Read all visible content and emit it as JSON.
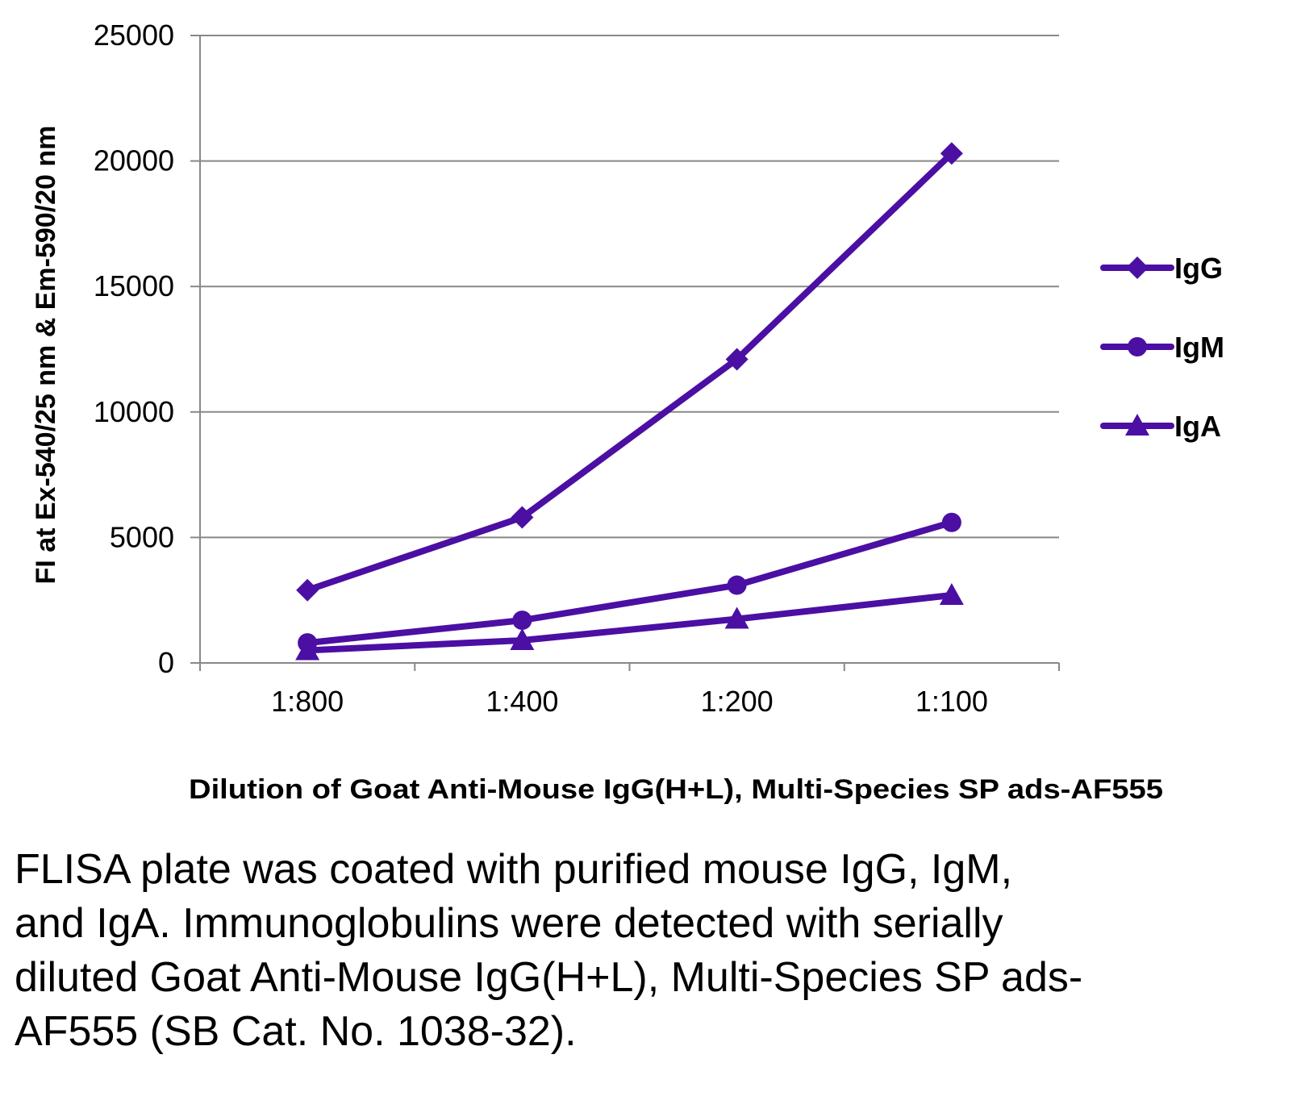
{
  "chart_data": {
    "type": "line",
    "categories": [
      "1:800",
      "1:400",
      "1:200",
      "1:100"
    ],
    "series": [
      {
        "name": "IgG",
        "marker": "diamond",
        "values": [
          2900,
          5800,
          12100,
          20300
        ]
      },
      {
        "name": "IgM",
        "marker": "circle",
        "values": [
          800,
          1700,
          3100,
          5600
        ]
      },
      {
        "name": "IgA",
        "marker": "triangle",
        "values": [
          500,
          900,
          1750,
          2700
        ]
      }
    ],
    "ylim": [
      0,
      25000
    ],
    "yticks": [
      "0",
      "5000",
      "10000",
      "15000",
      "20000",
      "25000"
    ],
    "xlabel": "Dilution of Goat Anti-Mouse IgG(H+L), Multi-Species SP ads-AF555",
    "ylabel": "FI at Ex-540/25 nm & Em-590/20 nm",
    "grid": true,
    "legend_position": "right",
    "line_color": "#4b0fa3",
    "grid_color": "#888888"
  },
  "caption": "FLISA plate was coated with purified mouse IgG, IgM, and IgA.  Immunoglobulins were detected with serially diluted Goat Anti-Mouse IgG(H+L), Multi-Species SP ads-AF555 (SB Cat. No. 1038-32)."
}
